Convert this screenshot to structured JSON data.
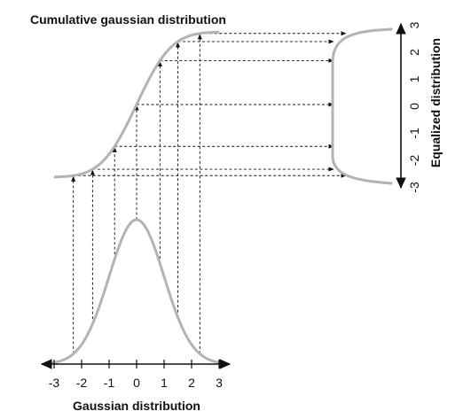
{
  "title_top": "Cumulative gaussian distribution",
  "x_axis": {
    "label": "Gaussian distribution",
    "ticks": [
      "-3",
      "-2",
      "-1",
      "0",
      "1",
      "2",
      "3"
    ]
  },
  "y_axis": {
    "label": "Equalized distribution",
    "ticks": [
      "-3",
      "-2",
      "-1",
      "0",
      "1",
      "2",
      "3"
    ]
  },
  "mapping_samples": [
    -2.3,
    -1.6,
    -0.8,
    0,
    0.85,
    1.5,
    2.3
  ],
  "colors": {
    "curve": "#b3b3b3",
    "lines": "#111111"
  }
}
